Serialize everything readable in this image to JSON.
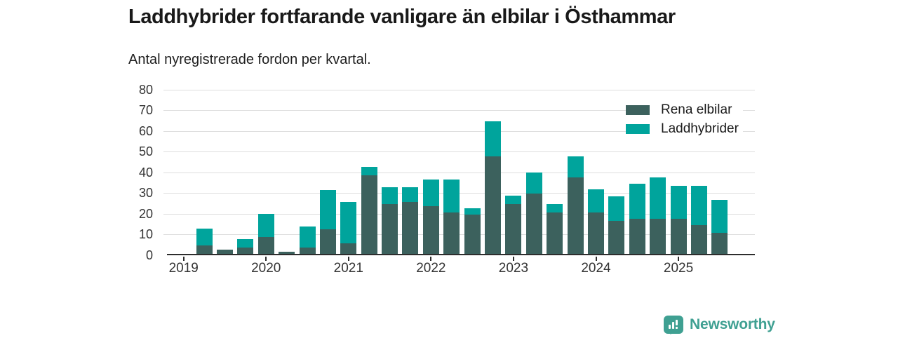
{
  "header": {
    "title": "Laddhybrider fortfarande vanligare än elbilar i Östhammar",
    "subtitle": "Antal nyregistrerade fordon per kvartal."
  },
  "colors": {
    "rena_elbilar": "#3c615d",
    "laddhybrider": "#00a49c",
    "gridline": "#dedede",
    "axis": "#2d2d2d",
    "brand_teal": "#3fa092"
  },
  "legend": {
    "items": [
      {
        "label": "Rena elbilar",
        "color": "#3c615d"
      },
      {
        "label": "Laddhybrider",
        "color": "#00a49c"
      }
    ]
  },
  "chart_data": {
    "type": "bar",
    "stacked": true,
    "title": "Laddhybrider fortfarande vanligare än elbilar i Östhammar",
    "subtitle": "Antal nyregistrerade fordon per kvartal.",
    "xlabel": "",
    "ylabel": "",
    "ylim": [
      0,
      80
    ],
    "y_ticks": [
      0,
      10,
      20,
      30,
      40,
      50,
      60,
      70,
      80
    ],
    "grid": "horizontal",
    "legend_position": "top-right",
    "categories": [
      "2019 Q1",
      "2019 Q2",
      "2019 Q3",
      "2019 Q4",
      "2020 Q1",
      "2020 Q2",
      "2020 Q3",
      "2020 Q4",
      "2021 Q1",
      "2021 Q2",
      "2021 Q3",
      "2021 Q4",
      "2022 Q1",
      "2022 Q2",
      "2022 Q3",
      "2022 Q4",
      "2023 Q1",
      "2023 Q2",
      "2023 Q3",
      "2023 Q4",
      "2024 Q1",
      "2024 Q2",
      "2024 Q3",
      "2024 Q4",
      "2025 Q1",
      "2025 Q2",
      "2025 Q3"
    ],
    "series": [
      {
        "name": "Rena elbilar",
        "color": "#3c615d",
        "values": [
          0,
          4,
          2,
          3,
          8,
          1,
          3,
          12,
          5,
          38,
          24,
          25,
          23,
          20,
          19,
          47,
          24,
          29,
          20,
          37,
          20,
          16,
          17,
          17,
          17,
          14,
          10
        ]
      },
      {
        "name": "Laddhybrider",
        "color": "#00a49c",
        "values": [
          0,
          8,
          0,
          4,
          11,
          0,
          10,
          19,
          20,
          4,
          8,
          7,
          13,
          16,
          3,
          17,
          4,
          10,
          4,
          10,
          11,
          12,
          17,
          20,
          16,
          19,
          16
        ]
      }
    ],
    "stack_totals": [
      0,
      12,
      2,
      7,
      19,
      1,
      13,
      31,
      25,
      42,
      32,
      32,
      36,
      36,
      22,
      64,
      28,
      39,
      24,
      47,
      31,
      28,
      34,
      37,
      33,
      33,
      26
    ],
    "x_year_ticks": [
      {
        "label": "2019",
        "quarter_index": 0
      },
      {
        "label": "2020",
        "quarter_index": 4
      },
      {
        "label": "2021",
        "quarter_index": 8
      },
      {
        "label": "2022",
        "quarter_index": 12
      },
      {
        "label": "2023",
        "quarter_index": 16
      },
      {
        "label": "2024",
        "quarter_index": 20
      },
      {
        "label": "2025",
        "quarter_index": 24
      }
    ]
  },
  "footer": {
    "brand": "Newsworthy",
    "logo_icon": "bar-chart-speech-bubble-icon"
  }
}
